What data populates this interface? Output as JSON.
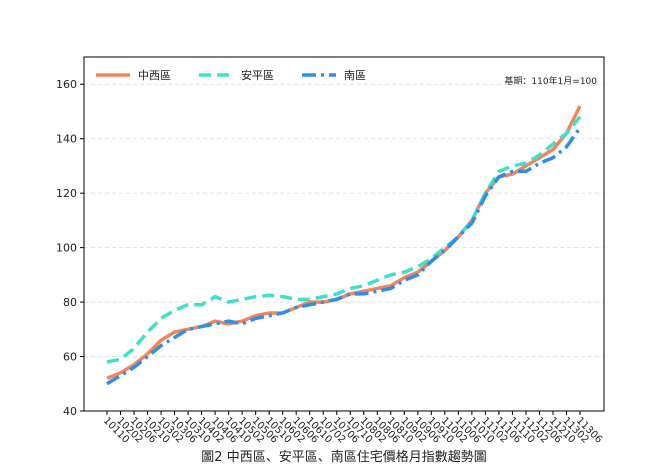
{
  "chart_data": {
    "type": "line",
    "caption": "圖2 中西區、安平區、南區住宅價格月指數趨勢圖",
    "annotation": "基期：110年1月=100",
    "categories": [
      "10110",
      "10202",
      "10206",
      "10210",
      "10302",
      "10306",
      "10310",
      "10402",
      "10406",
      "10410",
      "10502",
      "10506",
      "10510",
      "10602",
      "10606",
      "10610",
      "10702",
      "10706",
      "10710",
      "10802",
      "10806",
      "10810",
      "10902",
      "10906",
      "10910",
      "11002",
      "11006",
      "11010",
      "11102",
      "11106",
      "11110",
      "11202",
      "11206",
      "11210",
      "11302",
      "11306"
    ],
    "series": [
      {
        "name": "中西區",
        "color": "#f4845a",
        "dash": "solid",
        "values": [
          52,
          54,
          57,
          61,
          66,
          69,
          70,
          71,
          73,
          72,
          73,
          75,
          76,
          76,
          78,
          80,
          80,
          81,
          83,
          84,
          85,
          86,
          89,
          91,
          95,
          99,
          104,
          110,
          120,
          126,
          127,
          130,
          133,
          136,
          142,
          152
        ]
      },
      {
        "name": "安平區",
        "color": "#40e0c8",
        "dash": "dashed",
        "values": [
          58,
          59,
          63,
          69,
          74,
          77,
          79,
          79,
          82,
          80,
          81,
          82,
          82.5,
          82,
          81,
          81,
          82,
          83,
          85,
          86,
          88,
          90,
          91,
          93,
          96,
          100,
          104,
          110,
          120,
          128,
          130,
          131,
          134,
          138,
          142,
          148
        ]
      },
      {
        "name": "南區",
        "color": "#2f8fe6",
        "dash": "dashdot",
        "values": [
          50,
          53,
          56,
          60,
          64,
          67,
          70,
          71,
          72,
          73,
          72,
          74,
          75,
          76,
          78,
          79,
          80,
          81,
          83,
          83,
          84,
          85,
          88,
          90,
          95,
          99,
          104,
          109,
          119,
          126,
          128,
          128,
          131,
          133,
          137,
          144
        ]
      }
    ],
    "ylim": [
      40,
      170
    ],
    "yticks": [
      40,
      60,
      80,
      100,
      120,
      140,
      160
    ],
    "grid": true,
    "legend": "upper left"
  }
}
